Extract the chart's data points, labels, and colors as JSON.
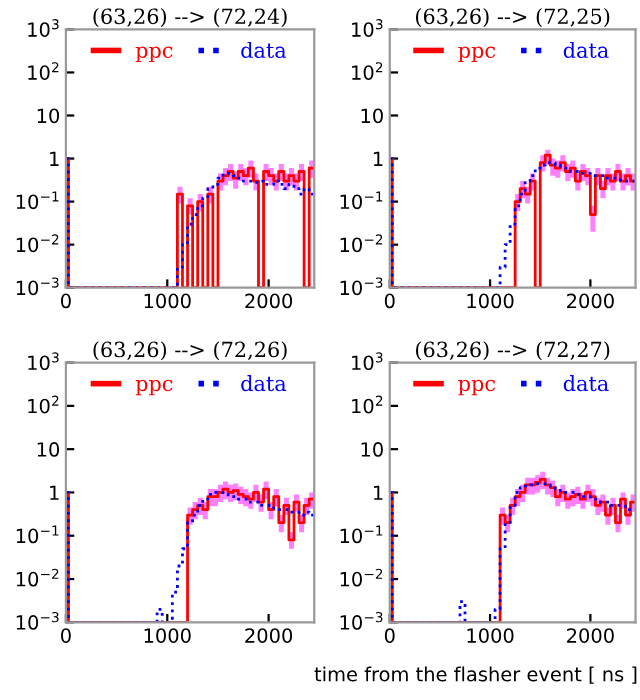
{
  "chart_data": [
    {
      "type": "step",
      "title": "(63,26) --> (72,24)",
      "log": "y",
      "legend": "top",
      "xlim": [
        0,
        2450
      ],
      "ylim": [
        0.001,
        1000
      ],
      "xticks": [
        0,
        1000,
        2000
      ],
      "yticks": [
        {
          "value": 0.001,
          "label": "10$^{−3}$"
        },
        {
          "value": 0.01,
          "label": "10$^{−2}$"
        },
        {
          "value": 0.1,
          "label": "10$^{−1}$"
        },
        {
          "value": 1,
          "label": "1"
        },
        {
          "value": 10,
          "label": "10"
        },
        {
          "value": 100,
          "label": "10$^{2}$"
        },
        {
          "value": 1000,
          "label": "10$^{3}$"
        }
      ],
      "series": [
        {
          "name": "ppc",
          "color": "#ff0000",
          "line_style": "solid",
          "x": [
            0,
            25,
            1100,
            1150,
            1200,
            1250,
            1300,
            1350,
            1400,
            1450,
            1500,
            1550,
            1600,
            1650,
            1700,
            1750,
            1800,
            1850,
            1900,
            1950,
            2000,
            2050,
            2100,
            2150,
            2200,
            2250,
            2300,
            2350,
            2400,
            2450
          ],
          "values": [
            1,
            0.001,
            0.15,
            0.001,
            0.08,
            0.001,
            0.1,
            0.001,
            0.15,
            0.001,
            0.3,
            0.4,
            0.5,
            0.35,
            0.5,
            0.4,
            0.6,
            0.3,
            0.001,
            0.5,
            0.4,
            0.3,
            0.5,
            0.3,
            0.4,
            0.3,
            0.5,
            0.001,
            0.6,
            0.6
          ],
          "upper": [
            1,
            0.001,
            0.22,
            0.001,
            0.12,
            0.001,
            0.15,
            0.001,
            0.22,
            0.001,
            0.45,
            0.6,
            0.75,
            0.5,
            0.75,
            0.6,
            0.9,
            0.45,
            0.001,
            0.75,
            0.6,
            0.45,
            0.75,
            0.45,
            0.6,
            0.45,
            0.75,
            0.001,
            0.9,
            0.9
          ],
          "lower": [
            1,
            0.001,
            0.09,
            0.001,
            0.05,
            0.001,
            0.06,
            0.001,
            0.09,
            0.001,
            0.18,
            0.24,
            0.3,
            0.2,
            0.3,
            0.24,
            0.36,
            0.18,
            0.001,
            0.3,
            0.24,
            0.18,
            0.3,
            0.18,
            0.24,
            0.18,
            0.3,
            0.001,
            0.36,
            0.36
          ]
        },
        {
          "name": "data",
          "color": "#0000ff",
          "line_style": "dotted",
          "x": [
            0,
            25,
            1100,
            1150,
            1200,
            1250,
            1300,
            1350,
            1400,
            1450,
            1500,
            1550,
            1600,
            1650,
            1700,
            1750,
            1800,
            1850,
            1900,
            1950,
            2000,
            2050,
            2100,
            2150,
            2200,
            2250,
            2300,
            2350,
            2400,
            2450
          ],
          "values": [
            1,
            0.001,
            0.003,
            0.01,
            0.03,
            0.05,
            0.08,
            0.12,
            0.2,
            0.25,
            0.35,
            0.45,
            0.45,
            0.4,
            0.35,
            0.3,
            0.3,
            0.28,
            0.3,
            0.25,
            0.25,
            0.3,
            0.25,
            0.2,
            0.25,
            0.2,
            0.15,
            0.2,
            0.15,
            0.15
          ]
        }
      ]
    },
    {
      "type": "step",
      "title": "(63,26) --> (72,25)",
      "log": "y",
      "legend": "top",
      "xlim": [
        0,
        2450
      ],
      "ylim": [
        0.001,
        1000
      ],
      "xticks": [
        0,
        1000,
        2000
      ],
      "yticks": [
        {
          "value": 0.001,
          "label": "10$^{−3}$"
        },
        {
          "value": 0.01,
          "label": "10$^{−2}$"
        },
        {
          "value": 0.1,
          "label": "10$^{−1}$"
        },
        {
          "value": 1,
          "label": "1"
        },
        {
          "value": 10,
          "label": "10"
        },
        {
          "value": 100,
          "label": "10$^{2}$"
        },
        {
          "value": 1000,
          "label": "10$^{3}$"
        }
      ],
      "series": [
        {
          "name": "ppc",
          "color": "#ff0000",
          "line_style": "solid",
          "x": [
            0,
            25,
            1050,
            1100,
            1150,
            1200,
            1250,
            1300,
            1350,
            1400,
            1450,
            1500,
            1550,
            1600,
            1650,
            1700,
            1750,
            1800,
            1850,
            1900,
            1950,
            2000,
            2050,
            2100,
            2150,
            2200,
            2250,
            2300,
            2350,
            2400,
            2450
          ],
          "values": [
            1,
            0.001,
            0.001,
            0.001,
            0.001,
            0.001,
            0.1,
            0.2,
            0.15,
            0.3,
            0.001,
            0.8,
            1.2,
            0.7,
            0.6,
            0.8,
            0.5,
            0.6,
            0.3,
            0.5,
            0.4,
            0.05,
            0.4,
            0.2,
            0.4,
            0.3,
            0.5,
            0.3,
            0.4,
            0.3,
            0.3
          ],
          "upper": [
            1,
            0.001,
            0.001,
            0.001,
            0.001,
            0.001,
            0.15,
            0.3,
            0.22,
            0.45,
            0.001,
            1.2,
            1.6,
            1.0,
            0.9,
            1.2,
            0.75,
            0.9,
            0.45,
            0.75,
            0.6,
            0.08,
            0.6,
            0.3,
            0.6,
            0.45,
            0.75,
            0.45,
            0.6,
            0.45,
            0.45
          ],
          "lower": [
            1,
            0.001,
            0.001,
            0.001,
            0.001,
            0.001,
            0.06,
            0.12,
            0.09,
            0.18,
            0.001,
            0.5,
            0.7,
            0.4,
            0.36,
            0.5,
            0.3,
            0.36,
            0.18,
            0.3,
            0.24,
            0.02,
            0.24,
            0.12,
            0.24,
            0.18,
            0.3,
            0.18,
            0.24,
            0.18,
            0.18
          ]
        },
        {
          "name": "data",
          "color": "#0000ff",
          "line_style": "dotted",
          "x": [
            0,
            25,
            1050,
            1100,
            1150,
            1200,
            1250,
            1300,
            1350,
            1400,
            1450,
            1500,
            1550,
            1600,
            1650,
            1700,
            1750,
            1800,
            1850,
            1900,
            1950,
            2000,
            2050,
            2100,
            2150,
            2200,
            2250,
            2300,
            2350,
            2400,
            2450
          ],
          "values": [
            1,
            0.001,
            0.001,
            0.003,
            0.01,
            0.03,
            0.08,
            0.15,
            0.3,
            0.4,
            0.6,
            0.7,
            0.8,
            0.8,
            0.7,
            0.6,
            0.6,
            0.5,
            0.5,
            0.45,
            0.45,
            0.4,
            0.4,
            0.4,
            0.35,
            0.35,
            0.35,
            0.3,
            0.3,
            0.3,
            0.3
          ]
        }
      ]
    },
    {
      "type": "step",
      "title": "(63,26) --> (72,26)",
      "log": "y",
      "legend": "top",
      "xlim": [
        0,
        2450
      ],
      "ylim": [
        0.001,
        1000
      ],
      "xticks": [
        0,
        1000,
        2000
      ],
      "yticks": [
        {
          "value": 0.001,
          "label": "10$^{−3}$"
        },
        {
          "value": 0.01,
          "label": "10$^{−2}$"
        },
        {
          "value": 0.1,
          "label": "10$^{−1}$"
        },
        {
          "value": 1,
          "label": "1"
        },
        {
          "value": 10,
          "label": "10"
        },
        {
          "value": 100,
          "label": "10$^{2}$"
        },
        {
          "value": 1000,
          "label": "10$^{3}$"
        }
      ],
      "series": [
        {
          "name": "ppc",
          "color": "#ff0000",
          "line_style": "solid",
          "x": [
            0,
            25,
            900,
            950,
            1000,
            1050,
            1100,
            1150,
            1200,
            1250,
            1300,
            1350,
            1400,
            1450,
            1500,
            1550,
            1600,
            1650,
            1700,
            1750,
            1800,
            1850,
            1900,
            1950,
            2000,
            2050,
            2100,
            2150,
            2200,
            2250,
            2300,
            2350,
            2400,
            2450
          ],
          "values": [
            1,
            0.001,
            0.001,
            0.001,
            0.001,
            0.001,
            0.001,
            0.001,
            0.3,
            0.4,
            0.5,
            0.4,
            0.8,
            0.8,
            1.0,
            1.2,
            1.0,
            1.1,
            0.9,
            0.8,
            0.7,
            1.0,
            0.6,
            1.2,
            0.4,
            0.8,
            0.2,
            0.5,
            0.08,
            0.6,
            0.2,
            0.5,
            0.7,
            0.7
          ],
          "upper": [
            1,
            0.001,
            0.001,
            0.001,
            0.001,
            0.001,
            0.001,
            0.001,
            0.45,
            0.6,
            0.75,
            0.6,
            1.2,
            1.2,
            1.5,
            1.8,
            1.5,
            1.6,
            1.35,
            1.2,
            1.0,
            1.5,
            0.9,
            1.8,
            0.6,
            1.2,
            0.3,
            0.75,
            0.12,
            0.9,
            0.3,
            0.75,
            1.0,
            1.0
          ],
          "lower": [
            1,
            0.001,
            0.001,
            0.001,
            0.001,
            0.001,
            0.001,
            0.001,
            0.18,
            0.24,
            0.3,
            0.24,
            0.48,
            0.48,
            0.6,
            0.7,
            0.6,
            0.66,
            0.54,
            0.48,
            0.42,
            0.6,
            0.36,
            0.7,
            0.24,
            0.48,
            0.12,
            0.3,
            0.05,
            0.36,
            0.12,
            0.3,
            0.42,
            0.42
          ]
        },
        {
          "name": "data",
          "color": "#0000ff",
          "line_style": "dotted",
          "x": [
            0,
            25,
            900,
            950,
            1000,
            1050,
            1100,
            1150,
            1200,
            1250,
            1300,
            1350,
            1400,
            1450,
            1500,
            1550,
            1600,
            1650,
            1700,
            1750,
            1800,
            1850,
            1900,
            1950,
            2000,
            2050,
            2100,
            2150,
            2200,
            2250,
            2300,
            2350,
            2400,
            2450
          ],
          "values": [
            1,
            0.001,
            0.002,
            0.001,
            0.001,
            0.005,
            0.02,
            0.05,
            0.2,
            0.3,
            0.5,
            0.7,
            0.9,
            1.0,
            1.0,
            0.9,
            0.8,
            0.8,
            0.7,
            0.7,
            0.6,
            0.6,
            0.5,
            0.5,
            0.5,
            0.4,
            0.4,
            0.4,
            0.35,
            0.35,
            0.3,
            0.35,
            0.3,
            0.3
          ]
        }
      ]
    },
    {
      "type": "step",
      "title": "(63,26) --> (72,27)",
      "xlabel": "time from the flasher event [ ns ]",
      "log": "y",
      "legend": "top",
      "xlim": [
        0,
        2450
      ],
      "ylim": [
        0.001,
        1000
      ],
      "xticks": [
        0,
        1000,
        2000
      ],
      "yticks": [
        {
          "value": 0.001,
          "label": "10$^{−3}$"
        },
        {
          "value": 0.01,
          "label": "10$^{−2}$"
        },
        {
          "value": 0.1,
          "label": "10$^{−1}$"
        },
        {
          "value": 1,
          "label": "1"
        },
        {
          "value": 10,
          "label": "10"
        },
        {
          "value": 100,
          "label": "10$^{2}$"
        },
        {
          "value": 1000,
          "label": "10$^{3}$"
        }
      ],
      "series": [
        {
          "name": "ppc",
          "color": "#ff0000",
          "line_style": "solid",
          "x": [
            0,
            25,
            700,
            750,
            1000,
            1050,
            1100,
            1150,
            1200,
            1250,
            1300,
            1350,
            1400,
            1450,
            1500,
            1550,
            1600,
            1650,
            1700,
            1750,
            1800,
            1850,
            1900,
            1950,
            2000,
            2050,
            2100,
            2150,
            2200,
            2250,
            2300,
            2350,
            2400,
            2450
          ],
          "values": [
            1,
            0.001,
            0.001,
            0.001,
            0.001,
            0.001,
            0.3,
            0.2,
            0.5,
            0.8,
            1.0,
            1.5,
            1.5,
            1.7,
            2.0,
            1.5,
            1.3,
            0.8,
            1.0,
            0.7,
            0.8,
            0.9,
            0.7,
            1.0,
            0.8,
            0.5,
            0.6,
            0.3,
            0.5,
            0.2,
            0.7,
            0.3,
            0.6,
            0.6
          ],
          "upper": [
            1,
            0.001,
            0.001,
            0.001,
            0.001,
            0.001,
            0.45,
            0.3,
            0.75,
            1.2,
            1.5,
            2.2,
            2.2,
            2.5,
            3.0,
            2.2,
            1.9,
            1.2,
            1.5,
            1.0,
            1.2,
            1.35,
            1.0,
            1.5,
            1.2,
            0.75,
            0.9,
            0.45,
            0.75,
            0.3,
            1.0,
            0.45,
            0.9,
            0.9
          ],
          "lower": [
            1,
            0.001,
            0.001,
            0.001,
            0.001,
            0.001,
            0.18,
            0.12,
            0.3,
            0.48,
            0.6,
            0.9,
            0.9,
            1.0,
            1.2,
            0.9,
            0.78,
            0.48,
            0.6,
            0.42,
            0.48,
            0.54,
            0.42,
            0.6,
            0.48,
            0.3,
            0.36,
            0.18,
            0.3,
            0.12,
            0.42,
            0.18,
            0.36,
            0.36
          ]
        },
        {
          "name": "data",
          "color": "#0000ff",
          "line_style": "dotted",
          "x": [
            0,
            25,
            700,
            750,
            1000,
            1050,
            1100,
            1150,
            1200,
            1250,
            1300,
            1350,
            1400,
            1450,
            1500,
            1550,
            1600,
            1650,
            1700,
            1750,
            1800,
            1850,
            1900,
            1950,
            2000,
            2050,
            2100,
            2150,
            2200,
            2250,
            2300,
            2350,
            2400,
            2450
          ],
          "values": [
            1,
            0.001,
            0.003,
            0.001,
            0.001,
            0.002,
            0.05,
            0.2,
            0.5,
            1.0,
            1.3,
            1.4,
            1.5,
            1.6,
            1.6,
            1.5,
            1.3,
            1.2,
            1.1,
            1.0,
            1.0,
            0.9,
            0.8,
            0.8,
            0.7,
            0.7,
            0.6,
            0.6,
            0.5,
            0.5,
            0.5,
            0.4,
            0.4,
            0.4
          ]
        }
      ]
    }
  ]
}
